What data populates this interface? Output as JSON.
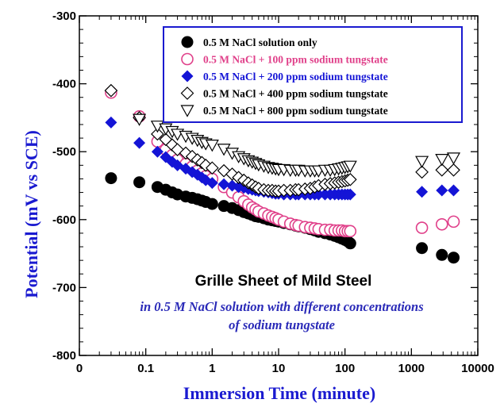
{
  "chart_data": {
    "type": "scatter",
    "title": "",
    "xlabel": "Immersion Time (minute)",
    "ylabel": "Potential (mV vs SCE)",
    "x_scale": "log",
    "xlim": [
      0.01,
      10000
    ],
    "ylim": [
      -800,
      -300
    ],
    "x_ticks": [
      {
        "value": 0.01,
        "label": "0"
      },
      {
        "value": 0.1,
        "label": "0.1"
      },
      {
        "value": 1,
        "label": "1"
      },
      {
        "value": 10,
        "label": "10"
      },
      {
        "value": 100,
        "label": "100"
      },
      {
        "value": 1000,
        "label": "1000"
      },
      {
        "value": 10000,
        "label": "10000"
      }
    ],
    "y_ticks": [
      -300,
      -400,
      -500,
      -600,
      -700,
      -800
    ],
    "grid": false,
    "legend_position": "top-right",
    "annotations": [
      "Grille Sheet of Mild Steel",
      "in 0.5 M NaCl solution with different concentrations",
      "of sodium tungstate"
    ],
    "colors": {
      "axis_title": "#1a1ad0",
      "legend_border": "#1a1ad0",
      "annotation_sub": "#2a2ab8",
      "series_pink": "#e0408a",
      "series_blue": "#1414d6",
      "series_black": "#000000"
    },
    "series": [
      {
        "name": "0.5 M NaCl solution only",
        "marker": "circle-filled",
        "color": "#000000",
        "points": [
          [
            0.03,
            -539
          ],
          [
            0.08,
            -545
          ],
          [
            0.15,
            -552
          ],
          [
            0.2,
            -556
          ],
          [
            0.25,
            -560
          ],
          [
            0.3,
            -563
          ],
          [
            0.4,
            -566
          ],
          [
            0.5,
            -568
          ],
          [
            0.6,
            -570
          ],
          [
            0.7,
            -572
          ],
          [
            0.8,
            -574
          ],
          [
            1.0,
            -577
          ],
          [
            1.5,
            -580
          ],
          [
            2,
            -583
          ],
          [
            2.5,
            -586
          ],
          [
            3,
            -589
          ],
          [
            3.5,
            -591
          ],
          [
            4,
            -593
          ],
          [
            4.5,
            -595
          ],
          [
            5,
            -596
          ],
          [
            6,
            -598
          ],
          [
            7,
            -600
          ],
          [
            8,
            -601
          ],
          [
            9,
            -602
          ],
          [
            10,
            -603
          ],
          [
            12,
            -605
          ],
          [
            15,
            -607
          ],
          [
            18,
            -609
          ],
          [
            20,
            -610
          ],
          [
            25,
            -612
          ],
          [
            30,
            -614
          ],
          [
            35,
            -616
          ],
          [
            40,
            -618
          ],
          [
            50,
            -620
          ],
          [
            60,
            -622
          ],
          [
            70,
            -624
          ],
          [
            80,
            -626
          ],
          [
            90,
            -628
          ],
          [
            100,
            -630
          ],
          [
            110,
            -632
          ],
          [
            120,
            -635
          ],
          [
            1440,
            -642
          ],
          [
            2880,
            -652
          ],
          [
            4320,
            -656
          ]
        ]
      },
      {
        "name": "0.5 M NaCl + 100 ppm sodium tungstate",
        "marker": "circle-open",
        "color": "#e0408a",
        "points": [
          [
            0.03,
            -413
          ],
          [
            0.08,
            -448
          ],
          [
            0.15,
            -485
          ],
          [
            0.2,
            -497
          ],
          [
            0.25,
            -505
          ],
          [
            0.3,
            -512
          ],
          [
            0.4,
            -518
          ],
          [
            0.5,
            -522
          ],
          [
            0.6,
            -528
          ],
          [
            0.7,
            -532
          ],
          [
            0.8,
            -536
          ],
          [
            1.0,
            -540
          ],
          [
            1.5,
            -552
          ],
          [
            2,
            -560
          ],
          [
            2.5,
            -567
          ],
          [
            3,
            -573
          ],
          [
            3.5,
            -578
          ],
          [
            4,
            -582
          ],
          [
            4.5,
            -585
          ],
          [
            5,
            -588
          ],
          [
            6,
            -591
          ],
          [
            7,
            -594
          ],
          [
            8,
            -596
          ],
          [
            9,
            -598
          ],
          [
            10,
            -600
          ],
          [
            12,
            -603
          ],
          [
            15,
            -606
          ],
          [
            18,
            -608
          ],
          [
            20,
            -609
          ],
          [
            25,
            -611
          ],
          [
            30,
            -612
          ],
          [
            35,
            -613
          ],
          [
            40,
            -614
          ],
          [
            50,
            -615
          ],
          [
            60,
            -615
          ],
          [
            70,
            -616
          ],
          [
            80,
            -616
          ],
          [
            90,
            -616
          ],
          [
            100,
            -617
          ],
          [
            110,
            -617
          ],
          [
            120,
            -617
          ],
          [
            1440,
            -612
          ],
          [
            2880,
            -607
          ],
          [
            4320,
            -603
          ]
        ]
      },
      {
        "name": "0.5 M NaCl + 200 ppm sodium tungstate",
        "marker": "diamond-filled",
        "color": "#1414d6",
        "points": [
          [
            0.03,
            -457
          ],
          [
            0.08,
            -487
          ],
          [
            0.15,
            -500
          ],
          [
            0.2,
            -508
          ],
          [
            0.25,
            -515
          ],
          [
            0.3,
            -520
          ],
          [
            0.4,
            -525
          ],
          [
            0.5,
            -530
          ],
          [
            0.6,
            -534
          ],
          [
            0.7,
            -538
          ],
          [
            0.8,
            -542
          ],
          [
            1.0,
            -546
          ],
          [
            1.5,
            -548
          ],
          [
            2,
            -550
          ],
          [
            2.5,
            -552
          ],
          [
            3,
            -553
          ],
          [
            3.5,
            -555
          ],
          [
            4,
            -556
          ],
          [
            4.5,
            -557
          ],
          [
            5,
            -558
          ],
          [
            6,
            -559
          ],
          [
            7,
            -560
          ],
          [
            8,
            -561
          ],
          [
            9,
            -562
          ],
          [
            10,
            -562
          ],
          [
            12,
            -563
          ],
          [
            15,
            -563
          ],
          [
            18,
            -563
          ],
          [
            20,
            -563
          ],
          [
            25,
            -563
          ],
          [
            30,
            -563
          ],
          [
            35,
            -563
          ],
          [
            40,
            -563
          ],
          [
            50,
            -563
          ],
          [
            60,
            -563
          ],
          [
            70,
            -563
          ],
          [
            80,
            -563
          ],
          [
            90,
            -563
          ],
          [
            100,
            -563
          ],
          [
            110,
            -563
          ],
          [
            120,
            -563
          ],
          [
            1440,
            -559
          ],
          [
            2880,
            -557
          ],
          [
            4320,
            -557
          ]
        ]
      },
      {
        "name": "0.5 M NaCl + 400 ppm sodium tungstate",
        "marker": "diamond-open",
        "color": "#000000",
        "points": [
          [
            0.03,
            -410
          ],
          [
            0.08,
            -450
          ],
          [
            0.15,
            -474
          ],
          [
            0.2,
            -482
          ],
          [
            0.25,
            -490
          ],
          [
            0.3,
            -497
          ],
          [
            0.4,
            -502
          ],
          [
            0.5,
            -507
          ],
          [
            0.6,
            -512
          ],
          [
            0.7,
            -516
          ],
          [
            0.8,
            -520
          ],
          [
            1.0,
            -524
          ],
          [
            1.5,
            -528
          ],
          [
            2,
            -533
          ],
          [
            2.5,
            -538
          ],
          [
            3,
            -542
          ],
          [
            3.5,
            -546
          ],
          [
            4,
            -549
          ],
          [
            4.5,
            -552
          ],
          [
            5,
            -554
          ],
          [
            6,
            -556
          ],
          [
            7,
            -557
          ],
          [
            8,
            -557
          ],
          [
            9,
            -558
          ],
          [
            10,
            -558
          ],
          [
            12,
            -557
          ],
          [
            15,
            -557
          ],
          [
            18,
            -556
          ],
          [
            20,
            -556
          ],
          [
            25,
            -555
          ],
          [
            30,
            -554
          ],
          [
            35,
            -552
          ],
          [
            40,
            -550
          ],
          [
            50,
            -548
          ],
          [
            60,
            -547
          ],
          [
            70,
            -546
          ],
          [
            80,
            -545
          ],
          [
            90,
            -544
          ],
          [
            100,
            -543
          ],
          [
            110,
            -542
          ],
          [
            120,
            -541
          ],
          [
            1440,
            -530
          ],
          [
            2880,
            -527
          ],
          [
            4320,
            -527
          ]
        ]
      },
      {
        "name": "0.5 M NaCl + 800 ppm sodium tungstate",
        "marker": "triangle-down-open",
        "color": "#000000",
        "points": [
          [
            0.08,
            -452
          ],
          [
            0.15,
            -462
          ],
          [
            0.2,
            -466
          ],
          [
            0.25,
            -470
          ],
          [
            0.3,
            -474
          ],
          [
            0.4,
            -477
          ],
          [
            0.5,
            -480
          ],
          [
            0.6,
            -483
          ],
          [
            0.7,
            -486
          ],
          [
            0.8,
            -488
          ],
          [
            1.0,
            -490
          ],
          [
            1.5,
            -496
          ],
          [
            2,
            -502
          ],
          [
            2.5,
            -507
          ],
          [
            3,
            -510
          ],
          [
            3.5,
            -513
          ],
          [
            4,
            -515
          ],
          [
            4.5,
            -517
          ],
          [
            5,
            -519
          ],
          [
            6,
            -521
          ],
          [
            7,
            -523
          ],
          [
            8,
            -524
          ],
          [
            9,
            -525
          ],
          [
            10,
            -526
          ],
          [
            12,
            -526
          ],
          [
            15,
            -527
          ],
          [
            18,
            -527
          ],
          [
            20,
            -527
          ],
          [
            25,
            -528
          ],
          [
            30,
            -528
          ],
          [
            35,
            -528
          ],
          [
            40,
            -528
          ],
          [
            50,
            -527
          ],
          [
            60,
            -527
          ],
          [
            70,
            -526
          ],
          [
            80,
            -525
          ],
          [
            90,
            -524
          ],
          [
            100,
            -523
          ],
          [
            110,
            -522
          ],
          [
            120,
            -521
          ],
          [
            1440,
            -514
          ],
          [
            2880,
            -511
          ],
          [
            4320,
            -509
          ]
        ]
      }
    ]
  }
}
